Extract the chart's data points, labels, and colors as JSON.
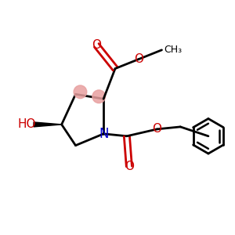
{
  "bg_color": "#ffffff",
  "atom_colors": {
    "C": "#000000",
    "N": "#0000cc",
    "O": "#cc0000",
    "H": "#000000"
  },
  "stereo_color": "#e8a0a0",
  "bond_color": "#000000",
  "bond_width": 2.0
}
